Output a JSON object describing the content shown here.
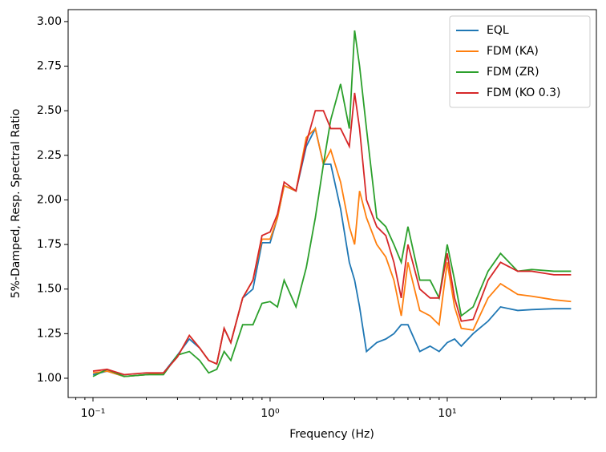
{
  "chart_data": {
    "type": "line",
    "xlabel": "Frequency (Hz)",
    "ylabel": "5%-Damped, Resp. Spectral Ratio",
    "xscale": "log",
    "x": [
      0.1,
      0.12,
      0.15,
      0.2,
      0.25,
      0.3,
      0.35,
      0.4,
      0.45,
      0.5,
      0.55,
      0.6,
      0.7,
      0.8,
      0.9,
      1.0,
      1.1,
      1.2,
      1.4,
      1.6,
      1.8,
      2.0,
      2.2,
      2.5,
      2.8,
      3.0,
      3.2,
      3.5,
      4,
      4.5,
      5,
      5.5,
      6,
      7,
      8,
      9,
      10,
      11,
      12,
      14,
      17,
      20,
      25,
      30,
      40,
      50
    ],
    "series": [
      {
        "name": "EQL",
        "color": "#1f77b4",
        "values": [
          1.02,
          1.04,
          1.01,
          1.02,
          1.03,
          1.13,
          1.22,
          1.17,
          1.1,
          1.08,
          1.28,
          1.2,
          1.45,
          1.5,
          1.76,
          1.76,
          1.9,
          2.08,
          2.05,
          2.3,
          2.4,
          2.2,
          2.2,
          1.95,
          1.65,
          1.55,
          1.4,
          1.15,
          1.2,
          1.22,
          1.25,
          1.3,
          1.3,
          1.15,
          1.18,
          1.15,
          1.2,
          1.22,
          1.18,
          1.25,
          1.32,
          1.4,
          1.38,
          1.385,
          1.39,
          1.39
        ]
      },
      {
        "name": "FDM (KA)",
        "color": "#ff7f0e",
        "values": [
          1.03,
          1.04,
          1.01,
          1.02,
          1.03,
          1.12,
          1.24,
          1.17,
          1.1,
          1.08,
          1.28,
          1.2,
          1.45,
          1.55,
          1.78,
          1.78,
          1.9,
          2.08,
          2.05,
          2.35,
          2.4,
          2.2,
          2.28,
          2.1,
          1.85,
          1.75,
          2.05,
          1.9,
          1.75,
          1.68,
          1.55,
          1.35,
          1.65,
          1.38,
          1.35,
          1.3,
          1.65,
          1.4,
          1.28,
          1.27,
          1.45,
          1.53,
          1.47,
          1.46,
          1.44,
          1.43
        ]
      },
      {
        "name": "FDM (ZR)",
        "color": "#2ca02c",
        "values": [
          1.01,
          1.05,
          1.01,
          1.02,
          1.02,
          1.13,
          1.15,
          1.1,
          1.03,
          1.05,
          1.15,
          1.1,
          1.3,
          1.3,
          1.42,
          1.43,
          1.4,
          1.55,
          1.4,
          1.62,
          1.9,
          2.2,
          2.45,
          2.65,
          2.4,
          2.95,
          2.75,
          2.4,
          1.9,
          1.85,
          1.75,
          1.65,
          1.85,
          1.55,
          1.55,
          1.45,
          1.75,
          1.55,
          1.35,
          1.4,
          1.6,
          1.7,
          1.6,
          1.61,
          1.6,
          1.6
        ]
      },
      {
        "name": "FDM (KO 0.3)",
        "color": "#d62728",
        "values": [
          1.04,
          1.05,
          1.02,
          1.03,
          1.03,
          1.12,
          1.24,
          1.17,
          1.1,
          1.08,
          1.28,
          1.2,
          1.45,
          1.55,
          1.8,
          1.82,
          1.92,
          2.1,
          2.05,
          2.32,
          2.5,
          2.5,
          2.4,
          2.4,
          2.3,
          2.6,
          2.4,
          2.0,
          1.85,
          1.8,
          1.65,
          1.45,
          1.75,
          1.5,
          1.45,
          1.45,
          1.7,
          1.45,
          1.32,
          1.33,
          1.55,
          1.65,
          1.6,
          1.6,
          1.58,
          1.58
        ]
      }
    ],
    "xlim": [
      0.0724,
      69.5
    ],
    "ylim": [
      0.892,
      3.067
    ],
    "xticks": [
      {
        "value": 0.1,
        "label": "10⁻¹"
      },
      {
        "value": 1,
        "label": "10⁰"
      },
      {
        "value": 10,
        "label": "10¹"
      }
    ],
    "xminorticks": [
      0.08,
      0.09,
      0.2,
      0.3,
      0.4,
      0.5,
      0.6,
      0.7,
      0.8,
      0.9,
      2,
      3,
      4,
      5,
      6,
      7,
      8,
      9,
      20,
      30,
      40,
      50,
      60
    ],
    "yticks": [
      {
        "value": 1,
        "label": "1.00"
      },
      {
        "value": 1.25,
        "label": "1.25"
      },
      {
        "value": 1.5,
        "label": "1.50"
      },
      {
        "value": 1.75,
        "label": "1.75"
      },
      {
        "value": 2,
        "label": "2.00"
      },
      {
        "value": 2.25,
        "label": "2.25"
      },
      {
        "value": 2.5,
        "label": "2.50"
      },
      {
        "value": 2.75,
        "label": "2.75"
      },
      {
        "value": 3,
        "label": "3.00"
      }
    ],
    "legend": "upper right"
  }
}
